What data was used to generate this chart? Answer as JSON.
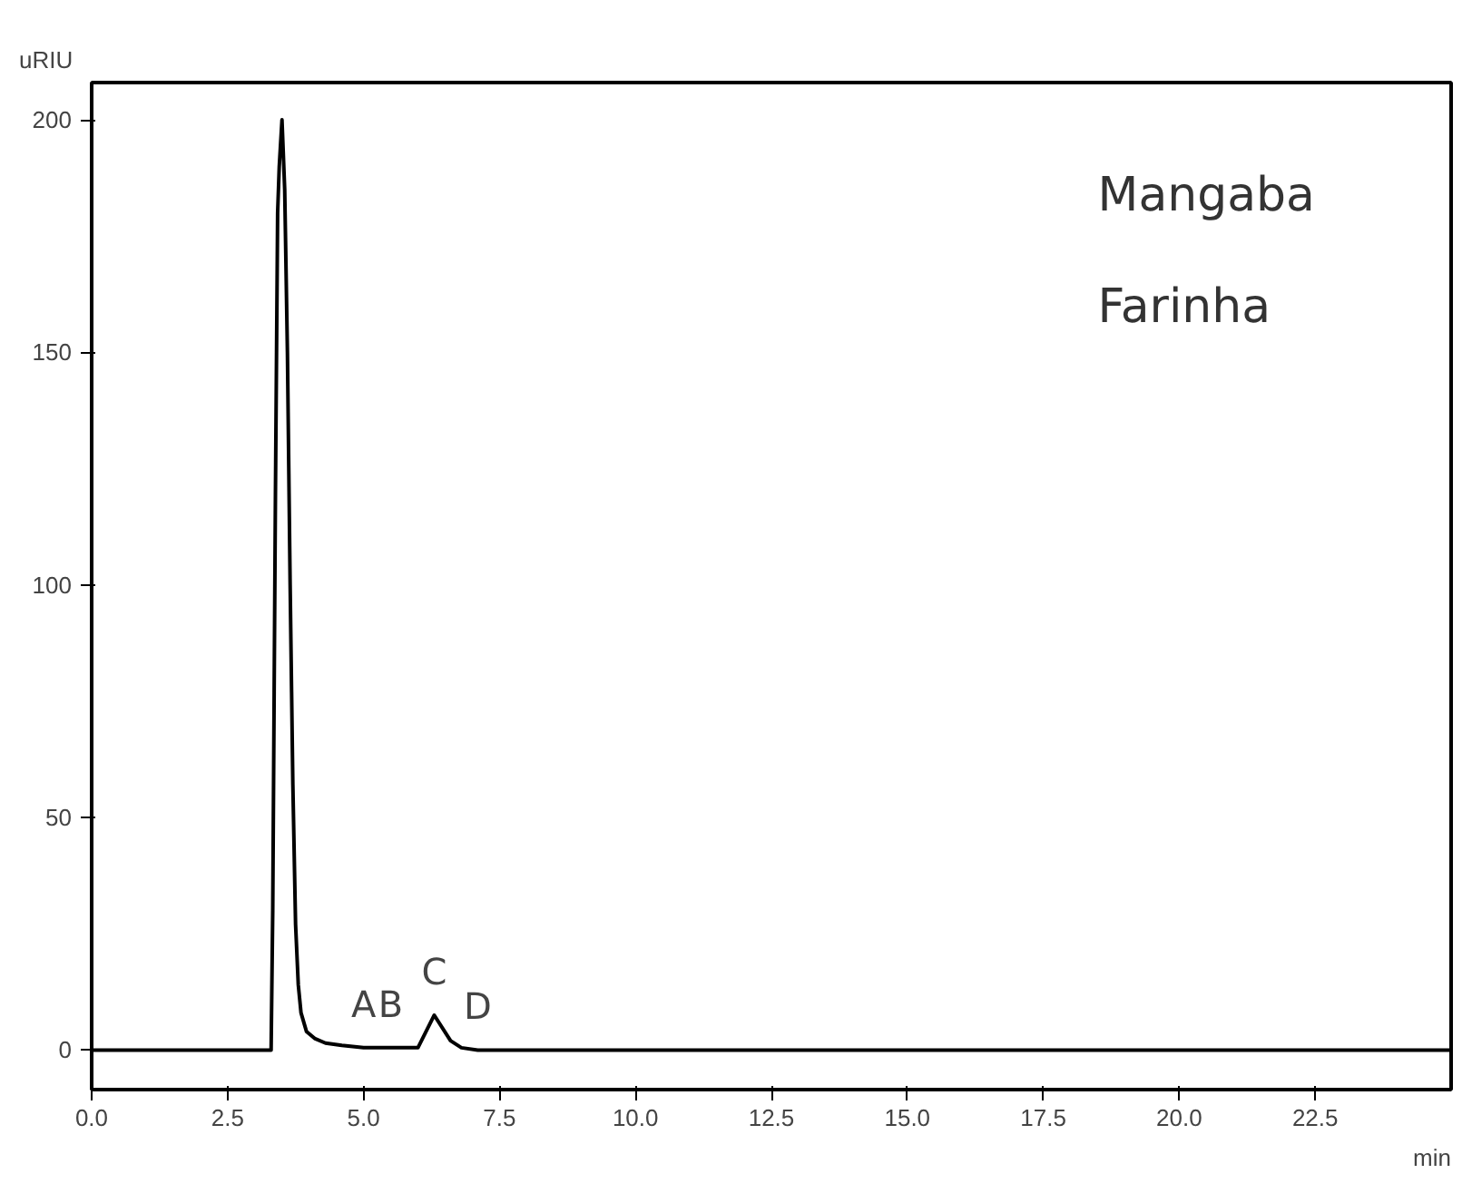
{
  "chart_data": {
    "type": "line",
    "xlabel": "min",
    "ylabel": "uRIU",
    "xlim": [
      0,
      25
    ],
    "ylim": [
      -8.5,
      208
    ],
    "xticks": [
      {
        "value": 0,
        "label": "0.0"
      },
      {
        "value": 2.5,
        "label": "2.5"
      },
      {
        "value": 5,
        "label": "5.0"
      },
      {
        "value": 7.5,
        "label": "7.5"
      },
      {
        "value": 10,
        "label": "10.0"
      },
      {
        "value": 12.5,
        "label": "12.5"
      },
      {
        "value": 15,
        "label": "15.0"
      },
      {
        "value": 17.5,
        "label": "17.5"
      },
      {
        "value": 20,
        "label": "20.0"
      },
      {
        "value": 22.5,
        "label": "22.5"
      }
    ],
    "yticks": [
      0,
      50,
      100,
      150,
      200
    ],
    "grid": false,
    "marker": "none",
    "line_style": "solid",
    "series": [
      {
        "color": "#000000",
        "x": [
          0,
          3.3,
          3.33,
          3.38,
          3.42,
          3.45,
          3.5,
          3.55,
          3.6,
          3.65,
          3.7,
          3.75,
          3.8,
          3.85,
          3.95,
          4.1,
          4.3,
          4.6,
          5.0,
          5.5,
          6.0,
          6.3,
          6.6,
          6.8,
          7.1,
          8.0,
          25
        ],
        "values": [
          0,
          0,
          30,
          120,
          180,
          190,
          200,
          185,
          150,
          100,
          57,
          27,
          14,
          8,
          4,
          2.5,
          1.5,
          1,
          0.5,
          0.5,
          0.5,
          7.5,
          2,
          0.5,
          0,
          0,
          0
        ]
      }
    ],
    "annotations": [
      {
        "text": "A",
        "x": 5.0,
        "y": 0.5
      },
      {
        "text": "B",
        "x": 5.5,
        "y": 0.5
      },
      {
        "text": "C",
        "x": 6.3,
        "y": 7.5
      },
      {
        "text": "D",
        "x": 7.1,
        "y": 0
      },
      "Mangaba",
      "Farinha"
    ]
  }
}
